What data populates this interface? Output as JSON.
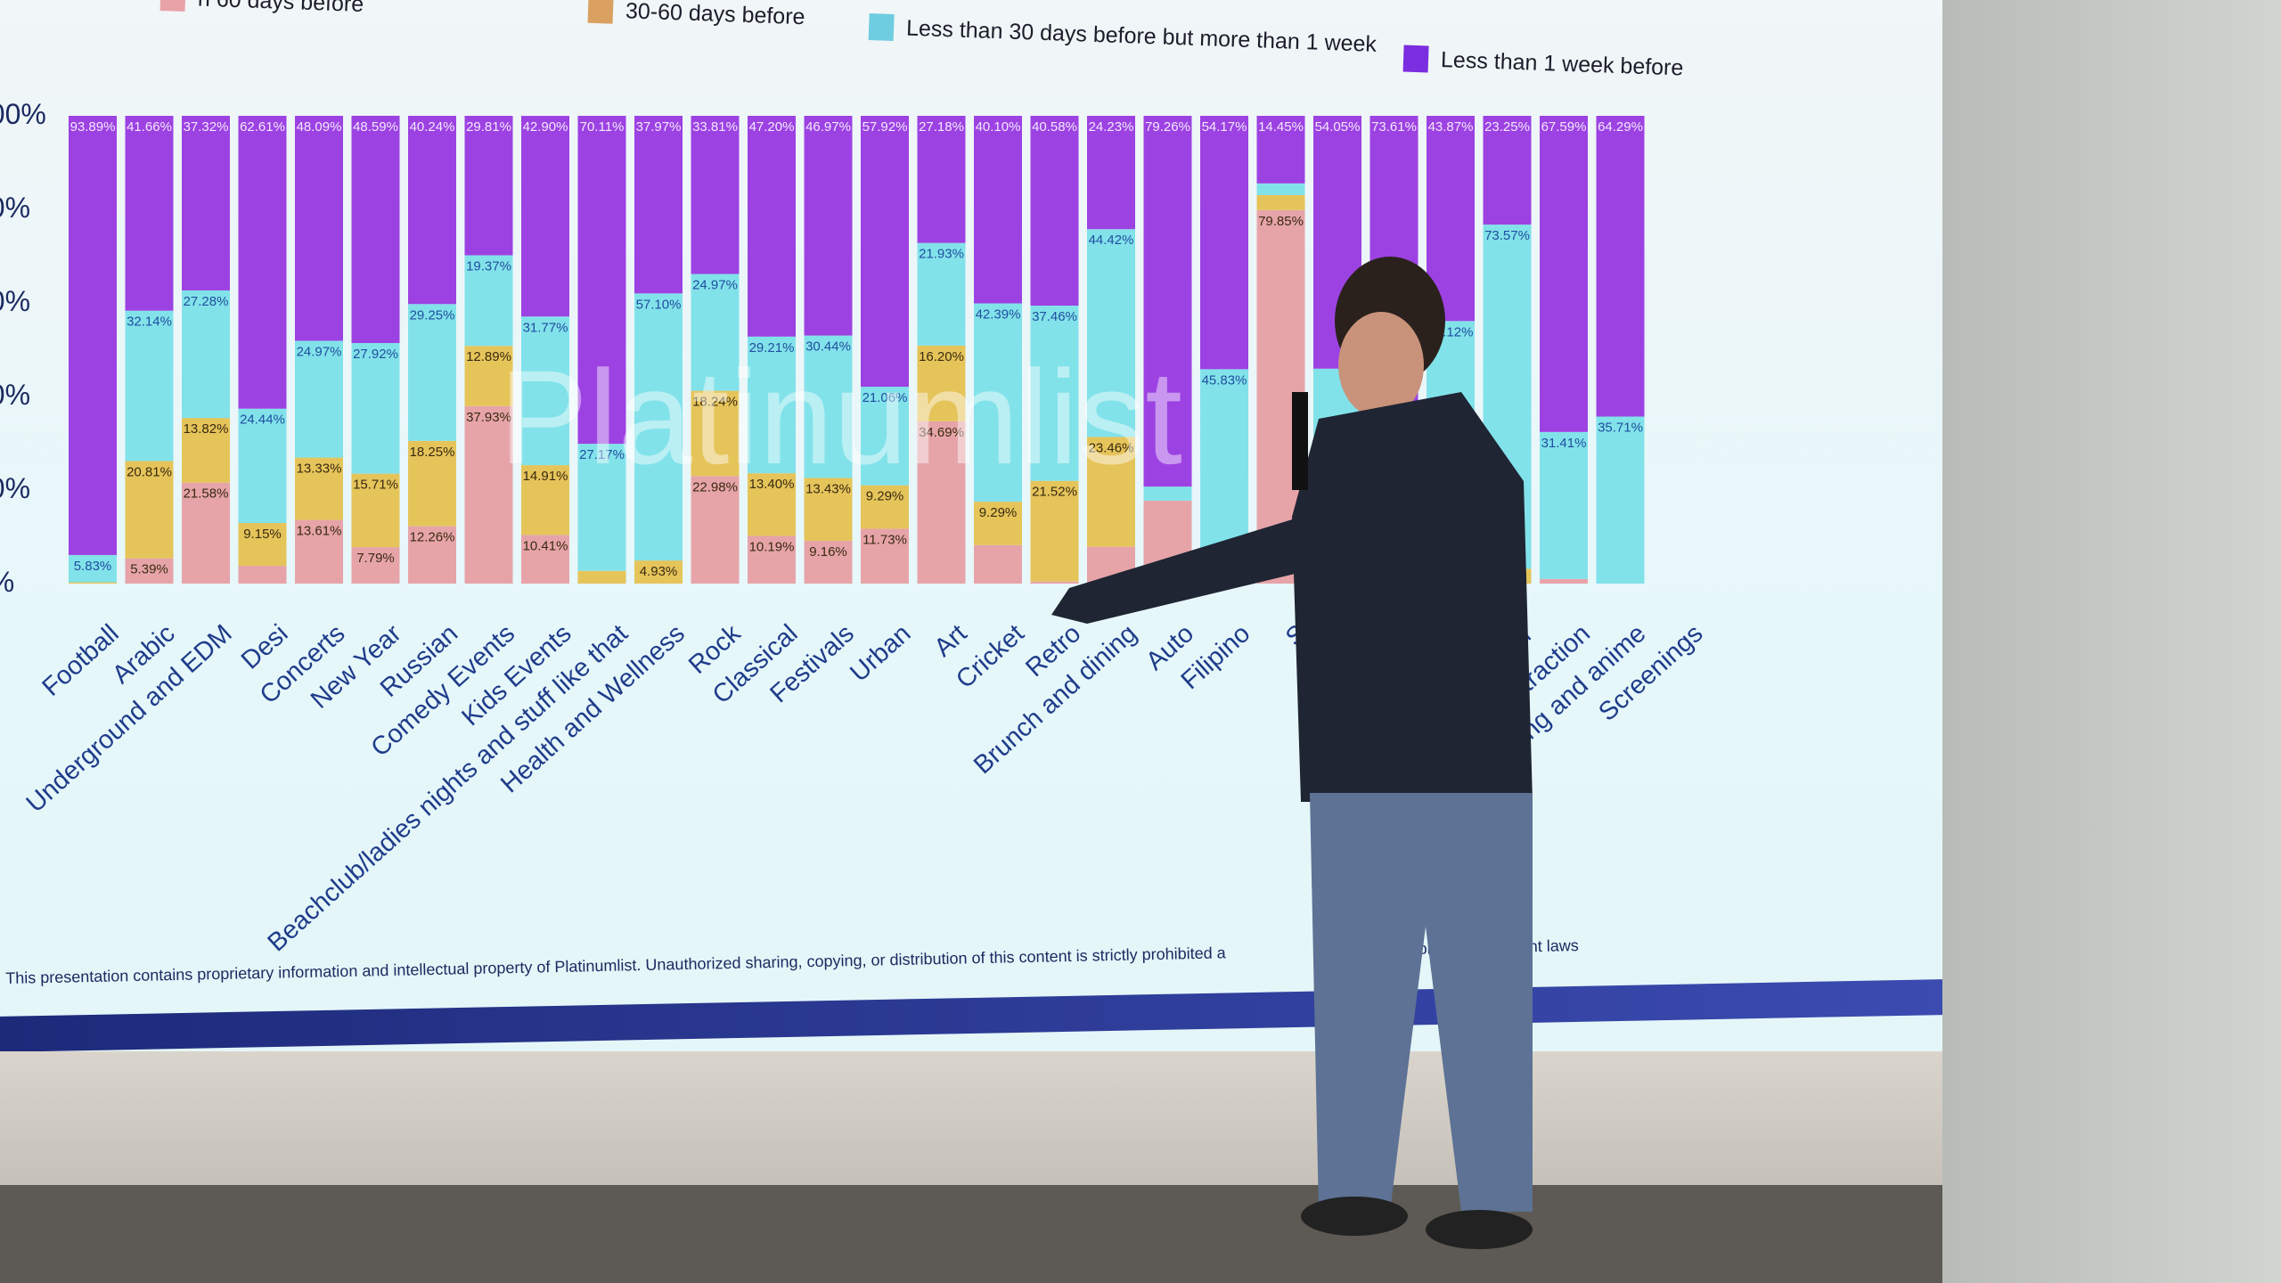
{
  "slide": {
    "footer": "This presentation contains proprietary information and intellectual property of Platinumlist. Unauthorized sharing, copying, or distribution of this content is strictly prohibited a",
    "footer_tail": "n under applicable copyright laws",
    "watermark": "Platinumlist"
  },
  "chart_data": {
    "type": "bar",
    "stacked": true,
    "normalized": true,
    "title": "",
    "xlabel": "",
    "ylabel": "",
    "ylim": [
      0,
      100
    ],
    "y_ticks": [
      "0%",
      "20%",
      "40%",
      "60%",
      "80%",
      "100%"
    ],
    "legend_position": "top",
    "legend": [
      {
        "label": "n 60 days before",
        "color": "#e7a3a8"
      },
      {
        "label": "30-60 days before",
        "color": "#d9a060"
      },
      {
        "label": "Less than 30 days before but more than 1 week",
        "color": "#6fcde0"
      },
      {
        "label": "Less than 1 week before",
        "color": "#7b2ee0"
      }
    ],
    "categories": [
      "Football",
      "Arabic",
      "Underground and EDM",
      "Desi",
      "Concerts",
      "New Year",
      "Russian",
      "Comedy Events",
      "Kids Events",
      "Beachclub/ladies nights and stuff like that",
      "Health and Wellness",
      "Rock",
      "Classical",
      "Festivals",
      "Urban",
      "Art",
      "Cricket",
      "Retro",
      "Brunch and dining",
      "Auto",
      "Filipino",
      "S",
      "Othe",
      "",
      "ences",
      "Other",
      "Attraction",
      "Gaming and anime",
      "Screenings"
    ],
    "series": [
      {
        "key": "more_than_60",
        "color": "#e6a4a9",
        "values": [
          0,
          5.39,
          21.58,
          3.8,
          13.61,
          7.79,
          12.26,
          37.93,
          10.41,
          0,
          0,
          22.98,
          10.19,
          9.16,
          11.73,
          34.69,
          8.22,
          0.44,
          7.89,
          17.74,
          0,
          79.85,
          2.95,
          2.39,
          11.01,
          0,
          1.0,
          0,
          null
        ],
        "labels": [
          null,
          "5.39%",
          "21.58%",
          null,
          "13.61%",
          "7.79%",
          "12.26%",
          "37.93%",
          "10.41%",
          null,
          null,
          "22.98%",
          "10.19%",
          "9.16%",
          "11.73%",
          "34.69%",
          null,
          null,
          null,
          null,
          null,
          "79.85%",
          null,
          null,
          null,
          null,
          null,
          null,
          null
        ]
      },
      {
        "key": "30_60",
        "color": "#e5c45a",
        "values": [
          0.28,
          20.81,
          13.82,
          9.15,
          13.33,
          15.71,
          18.25,
          12.89,
          14.91,
          2.72,
          4.93,
          18.24,
          13.4,
          13.43,
          9.29,
          16.2,
          9.29,
          21.52,
          23.46,
          0,
          0,
          3.2,
          3.0,
          2.0,
          20.0,
          3.18,
          0,
          0,
          null
        ],
        "labels": [
          null,
          "20.81%",
          "13.82%",
          "9.15%",
          "13.33%",
          "15.71%",
          "18.25%",
          "12.89%",
          "14.91%",
          null,
          "4.93%",
          "18.24%",
          "13.40%",
          "13.43%",
          "9.29%",
          "16.20%",
          "9.29%",
          "21.52%",
          "23.46%",
          null,
          null,
          null,
          null,
          null,
          null,
          null,
          null,
          null,
          null
        ]
      },
      {
        "key": "under_30",
        "color": "#82e2ea",
        "values": [
          5.83,
          32.14,
          27.28,
          24.44,
          24.97,
          27.92,
          29.25,
          19.37,
          31.77,
          27.17,
          57.1,
          24.97,
          29.21,
          30.44,
          21.06,
          21.93,
          42.39,
          37.46,
          44.42,
          3.0,
          45.83,
          2.5,
          40.0,
          22.0,
          25.12,
          73.57,
          31.41,
          35.71,
          null
        ],
        "labels": [
          "5.83%",
          "32.14%",
          "27.28%",
          "24.44%",
          "24.97%",
          "27.92%",
          "29.25%",
          "19.37%",
          "31.77%",
          "27.17%",
          "57.10%",
          "24.97%",
          "29.21%",
          "30.44%",
          "21.06%",
          "21.93%",
          "42.39%",
          "37.46%",
          "44.42%",
          null,
          "45.83%",
          null,
          null,
          null,
          "25.12%",
          "73.57%",
          "31.41%",
          "35.71%",
          null
        ]
      },
      {
        "key": "under_1_week",
        "color": "#9d42e2",
        "values": [
          93.89,
          41.66,
          37.32,
          62.61,
          48.09,
          48.59,
          40.24,
          29.81,
          42.9,
          70.11,
          37.97,
          33.81,
          47.2,
          46.97,
          57.92,
          27.18,
          40.1,
          40.58,
          24.23,
          79.26,
          54.17,
          14.45,
          54.05,
          73.61,
          43.87,
          23.25,
          67.59,
          64.29,
          null
        ],
        "labels": [
          "93.89%",
          "41.66%",
          "37.32%",
          "62.61%",
          "48.09%",
          "48.59%",
          "40.24%",
          "29.81%",
          "42.90%",
          "70.11%",
          "37.97%",
          "33.81%",
          "47.20%",
          "46.97%",
          "57.92%",
          "27.18%",
          "40.10%",
          "40.58%",
          "24.23%",
          "79.26%",
          "54.17%",
          "14.45%",
          "54.05%",
          "73.61%",
          "43.87%",
          "23.25%",
          "67.59%",
          "64.29%",
          null
        ]
      }
    ]
  }
}
